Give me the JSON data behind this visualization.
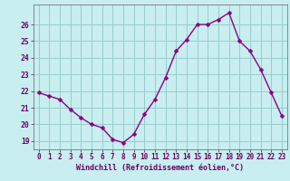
{
  "x": [
    0,
    1,
    2,
    3,
    4,
    5,
    6,
    7,
    8,
    9,
    10,
    11,
    12,
    13,
    14,
    15,
    16,
    17,
    18,
    19,
    20,
    21,
    22,
    23
  ],
  "y": [
    21.9,
    21.7,
    21.5,
    20.9,
    20.4,
    20.0,
    19.8,
    19.1,
    18.9,
    19.4,
    20.6,
    21.5,
    22.8,
    24.4,
    25.1,
    26.0,
    26.0,
    26.3,
    26.7,
    25.0,
    24.4,
    23.3,
    21.9,
    20.5
  ],
  "xlabel": "Windchill (Refroidissement éolien,°C)",
  "ylim": [
    18.5,
    27.2
  ],
  "xlim": [
    -0.5,
    23.5
  ],
  "yticks": [
    19,
    20,
    21,
    22,
    23,
    24,
    25,
    26
  ],
  "bg_color": "#c8eef0",
  "line_color": "#880088",
  "grid_color": "#99cccc",
  "label_color": "#660066",
  "tick_label_size": 5.5,
  "xlabel_size": 6.0
}
